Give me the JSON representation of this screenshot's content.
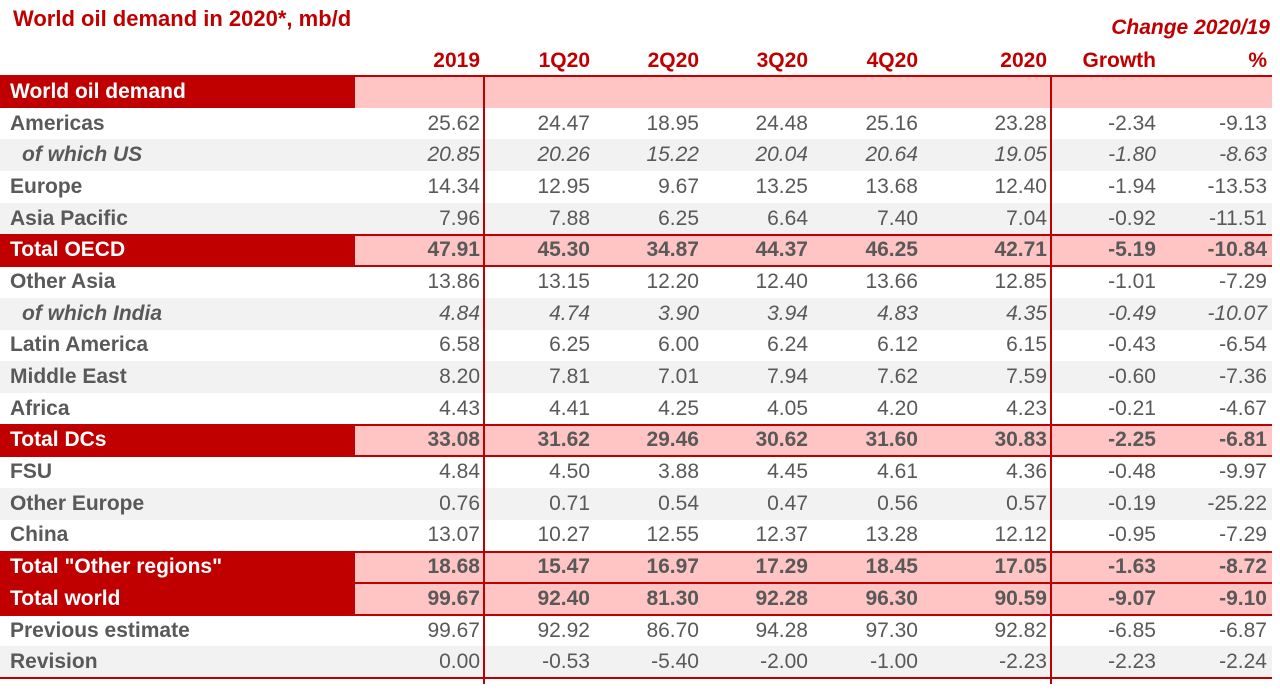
{
  "title": "World oil demand in 2020*, mb/d",
  "change_label": "Change 2020/19",
  "headers": [
    "2019",
    "1Q20",
    "2Q20",
    "3Q20",
    "4Q20",
    "2020",
    "Growth",
    "%"
  ],
  "section_label": "World oil demand",
  "rows": [
    {
      "label": "Americas",
      "values": [
        "25.62",
        "24.47",
        "18.95",
        "24.48",
        "25.16",
        "23.28",
        "-2.34",
        "-9.13"
      ],
      "style": "white"
    },
    {
      "label": "of which US",
      "values": [
        "20.85",
        "20.26",
        "15.22",
        "20.04",
        "20.64",
        "19.05",
        "-1.80",
        "-8.63"
      ],
      "style": "shade sub"
    },
    {
      "label": "Europe",
      "values": [
        "14.34",
        "12.95",
        "9.67",
        "13.25",
        "13.68",
        "12.40",
        "-1.94",
        "-13.53"
      ],
      "style": "white"
    },
    {
      "label": "Asia Pacific",
      "values": [
        "7.96",
        "7.88",
        "6.25",
        "6.64",
        "7.40",
        "7.04",
        "-0.92",
        "-11.51"
      ],
      "style": "shade"
    },
    {
      "label": "Total OECD",
      "values": [
        "47.91",
        "45.30",
        "34.87",
        "44.37",
        "46.25",
        "42.71",
        "-5.19",
        "-10.84"
      ],
      "style": "band"
    },
    {
      "label": "Other Asia",
      "values": [
        "13.86",
        "13.15",
        "12.20",
        "12.40",
        "13.66",
        "12.85",
        "-1.01",
        "-7.29"
      ],
      "style": "white"
    },
    {
      "label": "of which India",
      "values": [
        "4.84",
        "4.74",
        "3.90",
        "3.94",
        "4.83",
        "4.35",
        "-0.49",
        "-10.07"
      ],
      "style": "shade sub"
    },
    {
      "label": "Latin America",
      "values": [
        "6.58",
        "6.25",
        "6.00",
        "6.24",
        "6.12",
        "6.15",
        "-0.43",
        "-6.54"
      ],
      "style": "white"
    },
    {
      "label": "Middle East",
      "values": [
        "8.20",
        "7.81",
        "7.01",
        "7.94",
        "7.62",
        "7.59",
        "-0.60",
        "-7.36"
      ],
      "style": "shade"
    },
    {
      "label": "Africa",
      "values": [
        "4.43",
        "4.41",
        "4.25",
        "4.05",
        "4.20",
        "4.23",
        "-0.21",
        "-4.67"
      ],
      "style": "white"
    },
    {
      "label": "Total DCs",
      "values": [
        "33.08",
        "31.62",
        "29.46",
        "30.62",
        "31.60",
        "30.83",
        "-2.25",
        "-6.81"
      ],
      "style": "band"
    },
    {
      "label": "FSU",
      "values": [
        "4.84",
        "4.50",
        "3.88",
        "4.45",
        "4.61",
        "4.36",
        "-0.48",
        "-9.97"
      ],
      "style": "white"
    },
    {
      "label": "Other Europe",
      "values": [
        "0.76",
        "0.71",
        "0.54",
        "0.47",
        "0.56",
        "0.57",
        "-0.19",
        "-25.22"
      ],
      "style": "shade"
    },
    {
      "label": "China",
      "values": [
        "13.07",
        "10.27",
        "12.55",
        "12.37",
        "13.28",
        "12.12",
        "-0.95",
        "-7.29"
      ],
      "style": "white"
    },
    {
      "label": "Total \"Other regions\"",
      "values": [
        "18.68",
        "15.47",
        "16.97",
        "17.29",
        "18.45",
        "17.05",
        "-1.63",
        "-8.72"
      ],
      "style": "band"
    },
    {
      "label": "Total world",
      "values": [
        "99.67",
        "92.40",
        "81.30",
        "92.28",
        "96.30",
        "90.59",
        "-9.07",
        "-9.10"
      ],
      "style": "band"
    },
    {
      "label": "Previous estimate",
      "values": [
        "99.67",
        "92.92",
        "86.70",
        "94.28",
        "97.30",
        "92.82",
        "-6.85",
        "-6.87"
      ],
      "style": "white"
    },
    {
      "label": "Revision",
      "values": [
        "0.00",
        "-0.53",
        "-5.40",
        "-2.00",
        "-1.00",
        "-2.23",
        "-2.23",
        "-2.24"
      ],
      "style": "shade"
    }
  ],
  "colors": {
    "accent": "#c00000",
    "band": "#ffc4c4",
    "shade": "#f2f2f2",
    "text": "#595959"
  }
}
